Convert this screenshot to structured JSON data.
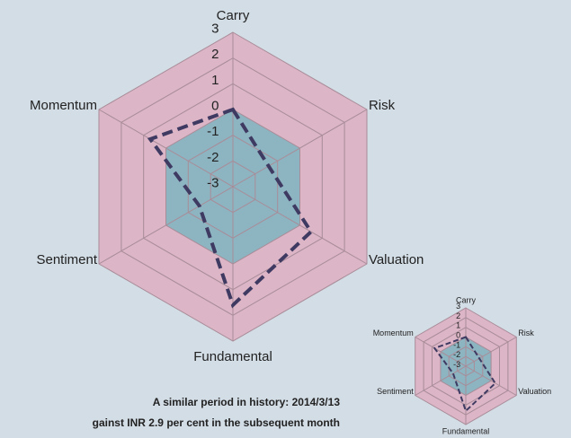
{
  "chart_data": [
    {
      "type": "radar",
      "categories": [
        "Carry",
        "Risk",
        "Valuation",
        "Fundamental",
        "Sentiment",
        "Momentum"
      ],
      "ylim": [
        -3,
        3
      ],
      "yticks": [
        3,
        2,
        1,
        0,
        -1,
        -2,
        -3
      ],
      "series": [
        {
          "color": "#dcb5c6",
          "style": "fill",
          "values": [
            3,
            3,
            3,
            3,
            3,
            3
          ]
        },
        {
          "color": "#7fb4bf",
          "style": "fill",
          "values": [
            0,
            0,
            0,
            0,
            0,
            0
          ]
        },
        {
          "color": "#3e3a62",
          "style": "dashed",
          "values": [
            0,
            -1.4,
            0.5,
            1.6,
            -1.5,
            0.7
          ]
        }
      ]
    },
    {
      "type": "radar",
      "categories": [
        "Carry",
        "Risk",
        "Valuation",
        "Fundamental",
        "Sentiment",
        "Momentum"
      ],
      "ylim": [
        -3,
        3
      ],
      "yticks": [
        3,
        2,
        1,
        0,
        -1,
        -2,
        -3
      ],
      "series": [
        {
          "color": "#dcb5c6",
          "style": "fill",
          "values": [
            3,
            3,
            3,
            3,
            3,
            3
          ]
        },
        {
          "color": "#7fb4bf",
          "style": "fill",
          "values": [
            0,
            0,
            0,
            0,
            0,
            0
          ]
        },
        {
          "color": "#3e3a62",
          "style": "dashed",
          "values": [
            0,
            -1.4,
            0.5,
            1.6,
            -1.5,
            0.7
          ]
        }
      ]
    }
  ],
  "captions": [
    "A similar period in history: 2014/3/13",
    "gainst INR 2.9 per cent in the subsequent month"
  ]
}
